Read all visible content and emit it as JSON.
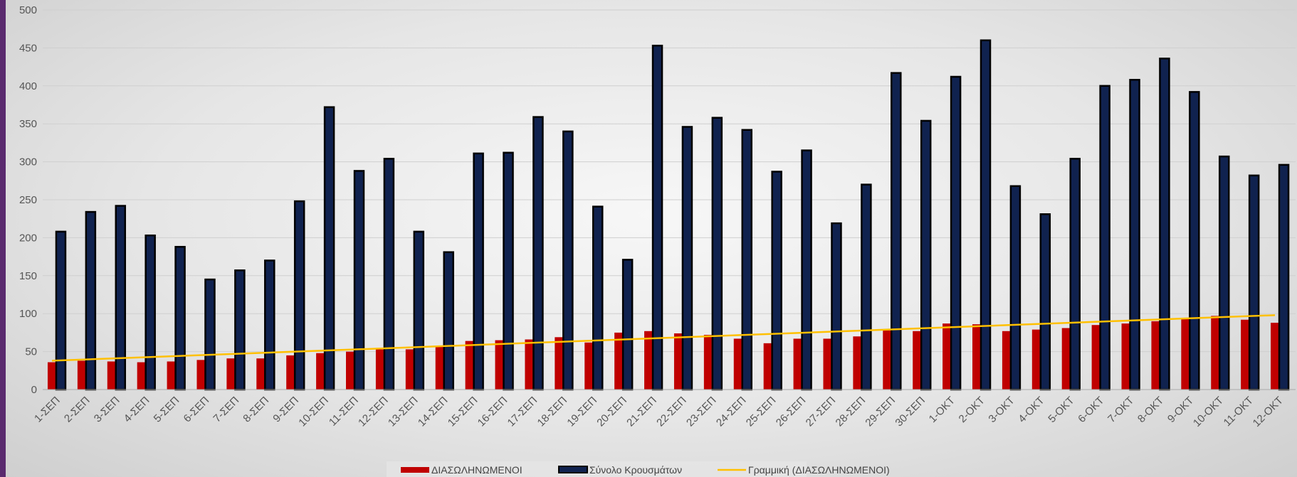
{
  "colors": {
    "series1_fill": "#c00000",
    "series2_fill": "#10224f",
    "series2_stroke": "#000000",
    "trend": "#ffc000",
    "grid": "#cfcfcf",
    "frame_edge": "#5a2a6e"
  },
  "chart_data": {
    "type": "bar",
    "title": "",
    "xlabel": "",
    "ylabel": "",
    "ylim": [
      0,
      500
    ],
    "yticks": [
      0,
      50,
      100,
      150,
      200,
      250,
      300,
      350,
      400,
      450,
      500
    ],
    "grid": true,
    "legend_position": "bottom",
    "categories": [
      "1-ΣΕΠ",
      "2-ΣΕΠ",
      "3-ΣΕΠ",
      "4-ΣΕΠ",
      "5-ΣΕΠ",
      "6-ΣΕΠ",
      "7-ΣΕΠ",
      "8-ΣΕΠ",
      "9-ΣΕΠ",
      "10-ΣΕΠ",
      "11-ΣΕΠ",
      "12-ΣΕΠ",
      "13-ΣΕΠ",
      "14-ΣΕΠ",
      "15-ΣΕΠ",
      "16-ΣΕΠ",
      "17-ΣΕΠ",
      "18-ΣΕΠ",
      "19-ΣΕΠ",
      "20-ΣΕΠ",
      "21-ΣΕΠ",
      "22-ΣΕΠ",
      "23-ΣΕΠ",
      "24-ΣΕΠ",
      "25-ΣΕΠ",
      "26-ΣΕΠ",
      "27-ΣΕΠ",
      "28-ΣΕΠ",
      "29-ΣΕΠ",
      "30-ΣΕΠ",
      "1-ΟΚΤ",
      "2-ΟΚΤ",
      "3-ΟΚΤ",
      "4-ΟΚΤ",
      "5-ΟΚΤ",
      "6-ΟΚΤ",
      "7-ΟΚΤ",
      "8-ΟΚΤ",
      "9-ΟΚΤ",
      "10-ΟΚΤ",
      "11-ΟΚΤ",
      "12-ΟΚΤ"
    ],
    "series": [
      {
        "name": "ΔΙΑΣΩΛΗΝΩΜΕΝΟΙ",
        "kind": "bar",
        "values": [
          36,
          38,
          37,
          36,
          37,
          39,
          41,
          41,
          45,
          48,
          50,
          53,
          53,
          57,
          64,
          65,
          66,
          69,
          62,
          75,
          77,
          74,
          72,
          67,
          61,
          67,
          67,
          70,
          78,
          77,
          87,
          86,
          77,
          79,
          81,
          85,
          87,
          90,
          94,
          97,
          92,
          88
        ]
      },
      {
        "name": "Σύνολο Κρουσμάτων",
        "kind": "bar",
        "values": [
          208,
          234,
          242,
          203,
          188,
          145,
          157,
          170,
          248,
          372,
          288,
          304,
          208,
          181,
          311,
          312,
          359,
          340,
          241,
          171,
          453,
          346,
          358,
          342,
          287,
          315,
          219,
          270,
          417,
          354,
          412,
          460,
          268,
          231,
          304,
          400,
          408,
          436,
          392,
          307,
          282,
          296
        ]
      },
      {
        "name": "Γραμμική (ΔΙΑΣΩΛΗΝΩΜΕΝΟΙ)",
        "kind": "trendline",
        "start": 38,
        "end": 98
      }
    ]
  }
}
